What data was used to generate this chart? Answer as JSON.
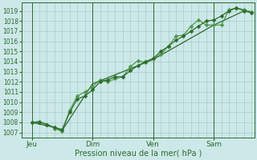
{
  "xlabel": "Pression niveau de la mer( hPa )",
  "bg_color": "#cce8e8",
  "grid_color": "#aacccc",
  "line_color_dark": "#2d6b2d",
  "line_color_light": "#4d9a4d",
  "ylim": [
    1006.5,
    1019.8
  ],
  "yticks": [
    1007,
    1008,
    1009,
    1010,
    1011,
    1012,
    1013,
    1014,
    1015,
    1016,
    1017,
    1018,
    1019
  ],
  "xlim": [
    -8,
    176
  ],
  "day_labels": [
    "Jeu",
    "Dim",
    "Ven",
    "Sam"
  ],
  "day_positions": [
    0,
    48,
    96,
    144
  ],
  "series1_x": [
    0,
    6,
    12,
    18,
    24,
    30,
    36,
    42,
    48,
    54,
    60,
    66,
    72,
    78,
    84,
    90,
    96,
    102,
    108,
    114,
    120,
    126,
    132,
    138,
    144,
    150,
    156,
    162,
    168,
    174
  ],
  "series1_y": [
    1008.0,
    1008.1,
    1007.8,
    1007.4,
    1007.1,
    1009.2,
    1010.6,
    1011.0,
    1011.5,
    1012.2,
    1012.0,
    1012.3,
    1012.5,
    1013.5,
    1014.1,
    1013.9,
    1014.3,
    1014.7,
    1015.5,
    1016.5,
    1016.6,
    1017.5,
    1018.1,
    1017.6,
    1017.6,
    1017.6,
    1019.1,
    1019.3,
    1019.1,
    1018.9
  ],
  "series2_x": [
    0,
    6,
    12,
    18,
    24,
    30,
    36,
    42,
    48,
    54,
    60,
    66,
    72,
    78,
    84,
    90,
    96,
    102,
    108,
    114,
    120,
    126,
    132,
    138,
    144,
    150,
    156,
    162,
    168,
    174
  ],
  "series2_y": [
    1008.0,
    1008.0,
    1007.8,
    1007.5,
    1007.3,
    1009.0,
    1010.3,
    1010.6,
    1011.2,
    1012.0,
    1012.2,
    1012.5,
    1012.5,
    1013.1,
    1013.6,
    1014.0,
    1014.3,
    1015.0,
    1015.5,
    1016.1,
    1016.5,
    1017.0,
    1017.5,
    1018.0,
    1018.1,
    1018.5,
    1019.0,
    1019.3,
    1019.0,
    1018.8
  ],
  "series3_x": [
    0,
    18,
    24,
    48,
    96,
    144,
    168,
    174
  ],
  "series3_y": [
    1008.0,
    1007.5,
    1007.2,
    1011.8,
    1014.2,
    1017.6,
    1019.0,
    1018.9
  ],
  "marker_size": 2.5,
  "linewidth": 0.9
}
